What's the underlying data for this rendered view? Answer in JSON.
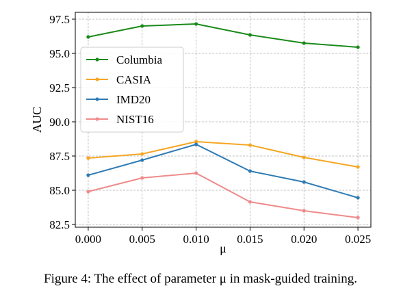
{
  "chart_data": {
    "type": "line",
    "x": [
      0.0,
      0.005,
      0.01,
      0.015,
      0.02,
      0.025
    ],
    "x_tick_labels": [
      "0.000",
      "0.005",
      "0.010",
      "0.015",
      "0.020",
      "0.025"
    ],
    "y_ticks": [
      82.5,
      85.0,
      87.5,
      90.0,
      92.5,
      95.0,
      97.5
    ],
    "y_tick_labels": [
      "82.5",
      "85.0",
      "87.5",
      "90.0",
      "92.5",
      "95.0",
      "97.5"
    ],
    "xlim": [
      -0.0012,
      0.0262
    ],
    "ylim": [
      82.3,
      98.0
    ],
    "xlabel": "μ",
    "ylabel": "AUC",
    "grid": true,
    "legend_position": "center-left",
    "series": [
      {
        "name": "Columbia",
        "color": "#1a8a1a",
        "values": [
          96.2,
          97.0,
          97.15,
          96.35,
          95.75,
          95.45
        ]
      },
      {
        "name": "CASIA",
        "color": "#f5a623",
        "values": [
          87.35,
          87.65,
          88.55,
          88.3,
          87.4,
          86.7
        ]
      },
      {
        "name": "IMD20",
        "color": "#2f7bb4",
        "values": [
          86.1,
          87.2,
          88.35,
          86.4,
          85.6,
          84.45
        ]
      },
      {
        "name": "NIST16",
        "color": "#f08a8a",
        "values": [
          84.9,
          85.9,
          86.25,
          84.15,
          83.5,
          83.0
        ]
      }
    ]
  },
  "caption": {
    "text": "Figure 4: The effect of parameter μ in mask-guided training."
  }
}
